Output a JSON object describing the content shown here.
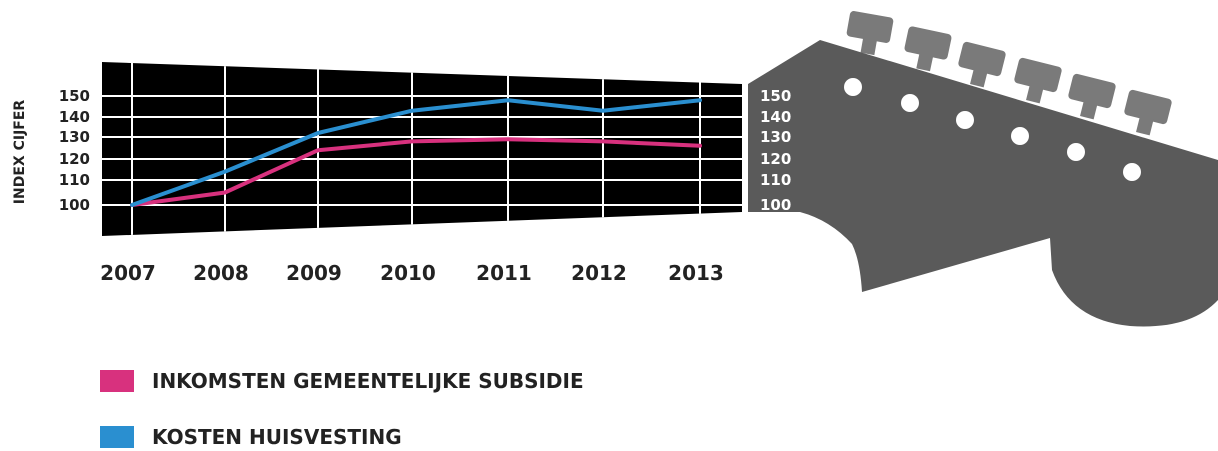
{
  "chart_data": {
    "type": "line",
    "ylabel": "INDEX CIJFER",
    "x": [
      "2007",
      "2008",
      "2009",
      "2010",
      "2011",
      "2012",
      "2013"
    ],
    "y_ticks": [
      100,
      110,
      120,
      130,
      140,
      150
    ],
    "ylim": [
      90,
      160
    ],
    "series": [
      {
        "name": "INKOMSTEN GEMEENTELIJKE SUBSIDIE",
        "color": "#d8317e",
        "values": [
          100,
          105,
          124,
          128,
          129,
          128,
          126
        ]
      },
      {
        "name": "KOSTEN HUISVESTING",
        "color": "#2a8fd0",
        "values": [
          100,
          114,
          132,
          143,
          148,
          143,
          148
        ]
      }
    ],
    "grid": true,
    "legend_position": "bottom-left",
    "style": "guitar-neck",
    "colors": {
      "background": "#000000",
      "grid": "#ffffff",
      "headstock": "#5a5a5a",
      "tuner": "#7a7a7a"
    }
  }
}
